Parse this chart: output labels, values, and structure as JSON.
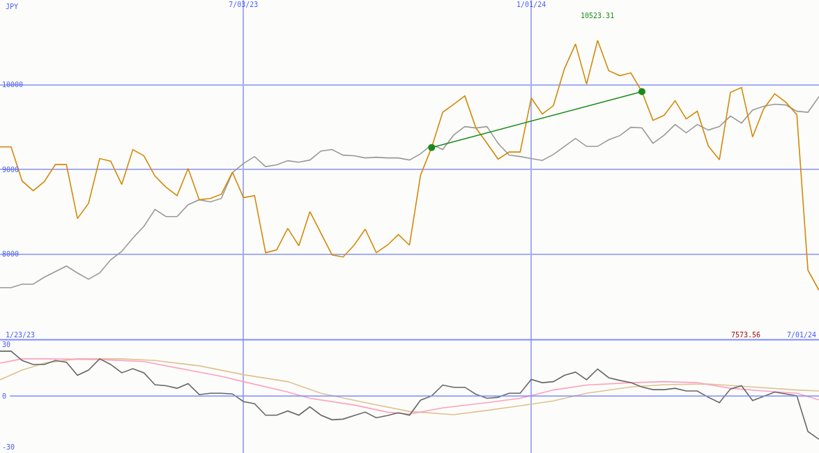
{
  "chart_data": [
    {
      "type": "line",
      "x": [
        "2023-01-30",
        "2023-02-06",
        "2023-02-13",
        "2023-02-20",
        "2023-02-27",
        "2023-03-06",
        "2023-03-13",
        "2023-03-20",
        "2023-03-27",
        "2023-04-03",
        "2023-04-10",
        "2023-04-17",
        "2023-04-24",
        "2023-05-01",
        "2023-05-08",
        "2023-05-15",
        "2023-05-22",
        "2023-05-29",
        "2023-06-05",
        "2023-06-12",
        "2023-06-19",
        "2023-06-26",
        "2023-07-03",
        "2023-07-10",
        "2023-07-17",
        "2023-07-24",
        "2023-07-31",
        "2023-08-07",
        "2023-08-14",
        "2023-08-21",
        "2023-08-28",
        "2023-09-04",
        "2023-09-11",
        "2023-09-18",
        "2023-09-25",
        "2023-10-02",
        "2023-10-09",
        "2023-10-16",
        "2023-10-23",
        "2023-10-30",
        "2023-11-06",
        "2023-11-13",
        "2023-11-20",
        "2023-11-27",
        "2023-12-04",
        "2023-12-11",
        "2023-12-18",
        "2023-12-25",
        "2024-01-01",
        "2024-01-08",
        "2024-01-15",
        "2024-01-22",
        "2024-01-29",
        "2024-02-05",
        "2024-02-12",
        "2024-02-19",
        "2024-02-26",
        "2024-03-04",
        "2024-03-11",
        "2024-03-18",
        "2024-03-25",
        "2024-04-01",
        "2024-04-08",
        "2024-04-15",
        "2024-04-22",
        "2024-04-29",
        "2024-05-06",
        "2024-05-13",
        "2024-05-20",
        "2024-05-27",
        "2024-06-03",
        "2024-06-10",
        "2024-06-17",
        "2024-06-24",
        "2024-07-01"
      ],
      "series": [
        {
          "color": "#999999",
          "values": [
            7605,
            7605,
            7646,
            7646,
            7728,
            7794,
            7860,
            7778,
            7704,
            7778,
            7934,
            8033,
            8189,
            8329,
            8527,
            8444,
            8444,
            8584,
            8642,
            8617,
            8658,
            8963,
            9070,
            9152,
            9033,
            9054,
            9103,
            9086,
            9111,
            9218,
            9235,
            9169,
            9161,
            9136,
            9144,
            9136,
            9136,
            9111,
            9185,
            9292,
            9235,
            9407,
            9506,
            9490,
            9506,
            9309,
            9169,
            9152,
            9128,
            9106,
            9177,
            9272,
            9366,
            9272,
            9272,
            9350,
            9399,
            9498,
            9490,
            9309,
            9403,
            9531,
            9432,
            9531,
            9465,
            9506,
            9630,
            9547,
            9700,
            9745,
            9770,
            9761,
            9687,
            9675,
            9860
          ]
        },
        {
          "color": "#d4870a",
          "values": [
            9267,
            9267,
            8864,
            8749,
            8856,
            9058,
            9058,
            8420,
            8601,
            9128,
            9099,
            8823,
            9235,
            9161,
            8922,
            8790,
            8691,
            9012,
            8642,
            8658,
            8708,
            8967,
            8667,
            8691,
            8017,
            8050,
            8305,
            8099,
            8502,
            8247,
            7992,
            7967,
            8107,
            8296,
            8017,
            8107,
            8231,
            8107,
            8934,
            9259,
            9675,
            9770,
            9868,
            9490,
            9309,
            9122,
            9206,
            9206,
            9844,
            9654,
            9753,
            10189,
            10481,
            10008,
            10523,
            10165,
            10107,
            10140,
            9918,
            9580,
            9638,
            9811,
            9597,
            9687,
            9276,
            9115,
            9909,
            9967,
            9383,
            9715,
            9893,
            9794,
            9646,
            7811,
            7574
          ]
        },
        {
          "color": "#1a8a1a",
          "marker": "circle",
          "x": [
            "2023-10-30",
            "2024-03-11"
          ],
          "values": [
            9259,
            9918
          ]
        }
      ],
      "xlim": [
        "2023-01-30",
        "2024-07-01"
      ],
      "xticks": [
        {
          "value": "2023-07-03",
          "label": "7/03/23"
        },
        {
          "value": "2024-01-01",
          "label": "1/01/24"
        }
      ],
      "ylim": [
        6990,
        11000
      ],
      "yticks": [
        8000,
        9000,
        10000
      ],
      "grid": true,
      "annotations": [
        "JPY",
        "1/23/23",
        "7/01/24",
        {
          "text": "10523.31",
          "x": "2024-02-12",
          "y": 10523
        },
        "7573.56"
      ]
    },
    {
      "type": "line",
      "x": [
        "2023-01-30",
        "2023-02-06",
        "2023-02-13",
        "2023-02-20",
        "2023-02-27",
        "2023-03-06",
        "2023-03-13",
        "2023-03-20",
        "2023-03-27",
        "2023-04-03",
        "2023-04-10",
        "2023-04-17",
        "2023-04-24",
        "2023-05-01",
        "2023-05-08",
        "2023-05-15",
        "2023-05-22",
        "2023-05-29",
        "2023-06-05",
        "2023-06-12",
        "2023-06-19",
        "2023-06-26",
        "2023-07-03",
        "2023-07-10",
        "2023-07-17",
        "2023-07-24",
        "2023-07-31",
        "2023-08-07",
        "2023-08-14",
        "2023-08-21",
        "2023-08-28",
        "2023-09-04",
        "2023-09-11",
        "2023-09-18",
        "2023-09-25",
        "2023-10-02",
        "2023-10-09",
        "2023-10-16",
        "2023-10-23",
        "2023-10-30",
        "2023-11-06",
        "2023-11-13",
        "2023-11-20",
        "2023-11-27",
        "2023-12-04",
        "2023-12-11",
        "2023-12-18",
        "2023-12-25",
        "2024-01-01",
        "2024-01-08",
        "2024-01-15",
        "2024-01-22",
        "2024-01-29",
        "2024-02-05",
        "2024-02-12",
        "2024-02-19",
        "2024-02-26",
        "2024-03-04",
        "2024-03-11",
        "2024-03-18",
        "2024-03-25",
        "2024-04-01",
        "2024-04-08",
        "2024-04-15",
        "2024-04-22",
        "2024-04-29",
        "2024-05-06",
        "2024-05-13",
        "2024-05-20",
        "2024-05-27",
        "2024-06-03",
        "2024-06-10",
        "2024-06-17",
        "2024-06-24",
        "2024-07-01"
      ],
      "series": [
        {
          "color": "#e0c090",
          "x": [
            "2023-01-30",
            "2023-02-13",
            "2023-02-27",
            "2023-03-20",
            "2023-04-17",
            "2023-05-08",
            "2023-06-05",
            "2023-07-03",
            "2023-07-31",
            "2023-08-21",
            "2023-09-18",
            "2023-10-16",
            "2023-11-13",
            "2023-12-04",
            "2023-12-25",
            "2024-01-15",
            "2024-02-05",
            "2024-03-04",
            "2024-03-25",
            "2024-04-22",
            "2024-05-20",
            "2024-06-17",
            "2024-07-01"
          ],
          "values": [
            9.5,
            15.2,
            19.3,
            21.8,
            21.8,
            20.8,
            17.7,
            12.5,
            8.4,
            1.6,
            -3.9,
            -9.1,
            -11.0,
            -8.5,
            -5.8,
            -2.9,
            1.6,
            5.3,
            6.6,
            7.0,
            5.3,
            3.5,
            2.9
          ]
        },
        {
          "color": "#ff9fc0",
          "x": [
            "2023-01-30",
            "2023-02-13",
            "2023-02-27",
            "2023-04-03",
            "2023-05-01",
            "2023-05-29",
            "2023-06-19",
            "2023-07-03",
            "2023-07-31",
            "2023-08-14",
            "2023-09-11",
            "2023-10-02",
            "2023-10-16",
            "2023-11-06",
            "2023-12-04",
            "2023-12-25",
            "2024-01-15",
            "2024-02-05",
            "2024-03-04",
            "2024-03-25",
            "2024-04-15",
            "2024-05-06",
            "2024-05-27",
            "2024-06-17",
            "2024-07-01"
          ],
          "values": [
            19.3,
            21.8,
            21.8,
            21.4,
            20.2,
            15.2,
            11.5,
            8.4,
            2.3,
            -1.4,
            -5.3,
            -9.5,
            -10.7,
            -7.0,
            -3.9,
            -1.4,
            3.5,
            6.4,
            7.8,
            8.4,
            7.8,
            4.5,
            2.9,
            1.6,
            -2.3
          ]
        },
        {
          "color": "#666666",
          "values": [
            26.3,
            26.3,
            20.8,
            18.5,
            18.5,
            20.8,
            19.8,
            12.1,
            15.2,
            21.8,
            18.5,
            13.6,
            16.0,
            13.6,
            6.6,
            6.0,
            4.5,
            7.2,
            0.8,
            1.6,
            1.6,
            1.2,
            -3.3,
            -4.5,
            -11.3,
            -11.3,
            -8.8,
            -11.3,
            -6.4,
            -11.3,
            -14.0,
            -13.6,
            -11.5,
            -9.5,
            -12.8,
            -11.5,
            -9.9,
            -11.3,
            -2.5,
            0,
            6.4,
            5.1,
            5.1,
            1.0,
            -1.4,
            -0.8,
            1.6,
            1.6,
            9.7,
            7.8,
            8.4,
            12.1,
            14.0,
            9.5,
            15.8,
            10.7,
            9.1,
            7.8,
            5.3,
            3.7,
            3.7,
            4.5,
            2.9,
            2.9,
            -0.8,
            -3.9,
            4.1,
            6.0,
            -2.7,
            -0.2,
            2.3,
            1.2,
            0.1,
            -20.9,
            -25.5
          ]
        }
      ],
      "xlim": [
        "2023-01-30",
        "2024-07-01"
      ],
      "xticks": [
        {
          "value": "2023-07-03",
          "label": null
        },
        {
          "value": "2024-01-01",
          "label": null
        }
      ],
      "ylim": [
        -33.5,
        33
      ],
      "yticks": [
        30,
        0,
        -30
      ],
      "grid": "x",
      "tick_labels": "y",
      "ref_lines": [
        {
          "axis": "y",
          "value": 0,
          "color": "#7f8cff"
        }
      ]
    }
  ]
}
